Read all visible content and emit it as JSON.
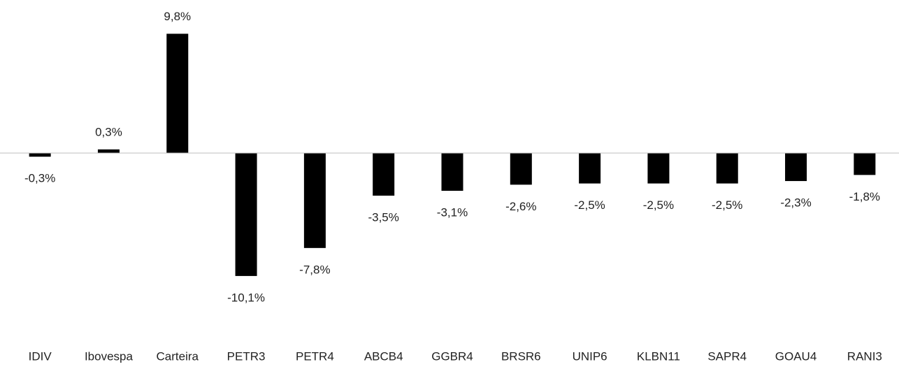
{
  "chart_data": {
    "type": "bar",
    "categories": [
      "IDIV",
      "Ibovespa",
      "Carteira",
      "PETR3",
      "PETR4",
      "ABCB4",
      "GGBR4",
      "BRSR6",
      "UNIP6",
      "KLBN11",
      "SAPR4",
      "GOAU4",
      "RANI3"
    ],
    "values": [
      -0.3,
      0.3,
      9.8,
      -10.1,
      -7.8,
      -3.5,
      -3.1,
      -2.6,
      -2.5,
      -2.5,
      -2.5,
      -2.3,
      -1.8
    ],
    "value_labels": [
      "-0,3%",
      "0,3%",
      "9,8%",
      "-10,1%",
      "-7,8%",
      "-3,5%",
      "-3,1%",
      "-2,6%",
      "-2,5%",
      "-2,5%",
      "-2,5%",
      "-2,3%",
      "-1,8%"
    ],
    "color": "#000000",
    "ylim": [
      -12,
      12
    ]
  }
}
